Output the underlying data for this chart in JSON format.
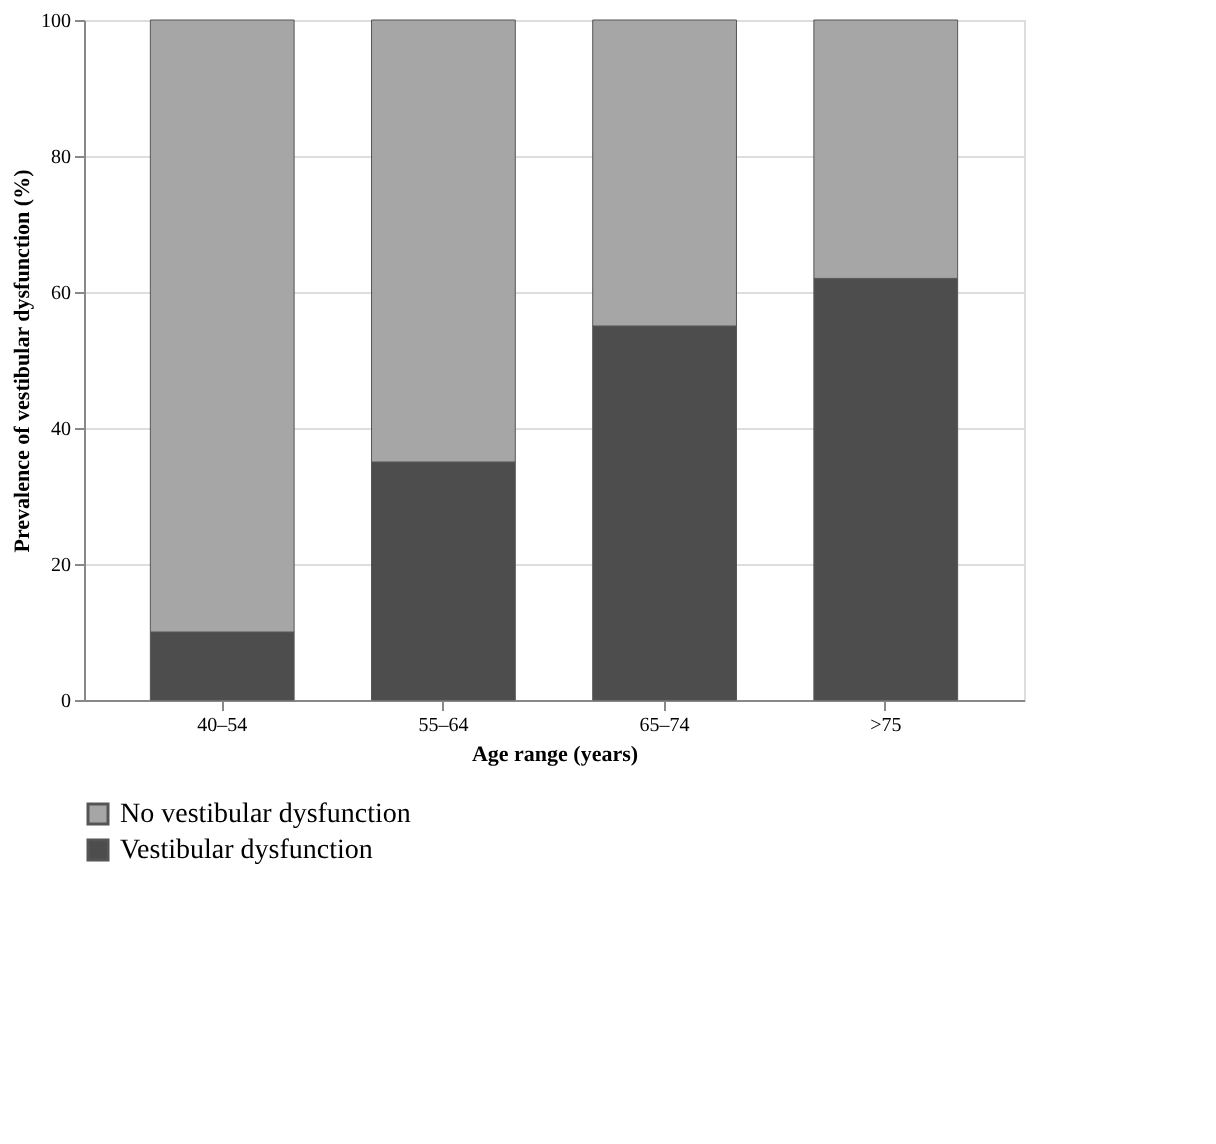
{
  "chart_data": {
    "type": "bar",
    "stacked": true,
    "xlabel": "Age range (years)",
    "ylabel": "Prevalence of vestibular dysfunction (%)",
    "categories": [
      "40–54",
      "55–64",
      "65–74",
      ">75"
    ],
    "series": [
      {
        "name": "Vestibular dysfunction",
        "color": "#4d4d4d",
        "values": [
          10,
          35,
          55,
          62
        ]
      },
      {
        "name": "No vestibular dysfunction",
        "color": "#a6a6a6",
        "values": [
          90,
          65,
          45,
          38
        ]
      }
    ],
    "ylim": [
      0,
      100
    ],
    "yticks": [
      0,
      20,
      40,
      60,
      80,
      100
    ],
    "grid": "y",
    "legend": "bottom"
  }
}
